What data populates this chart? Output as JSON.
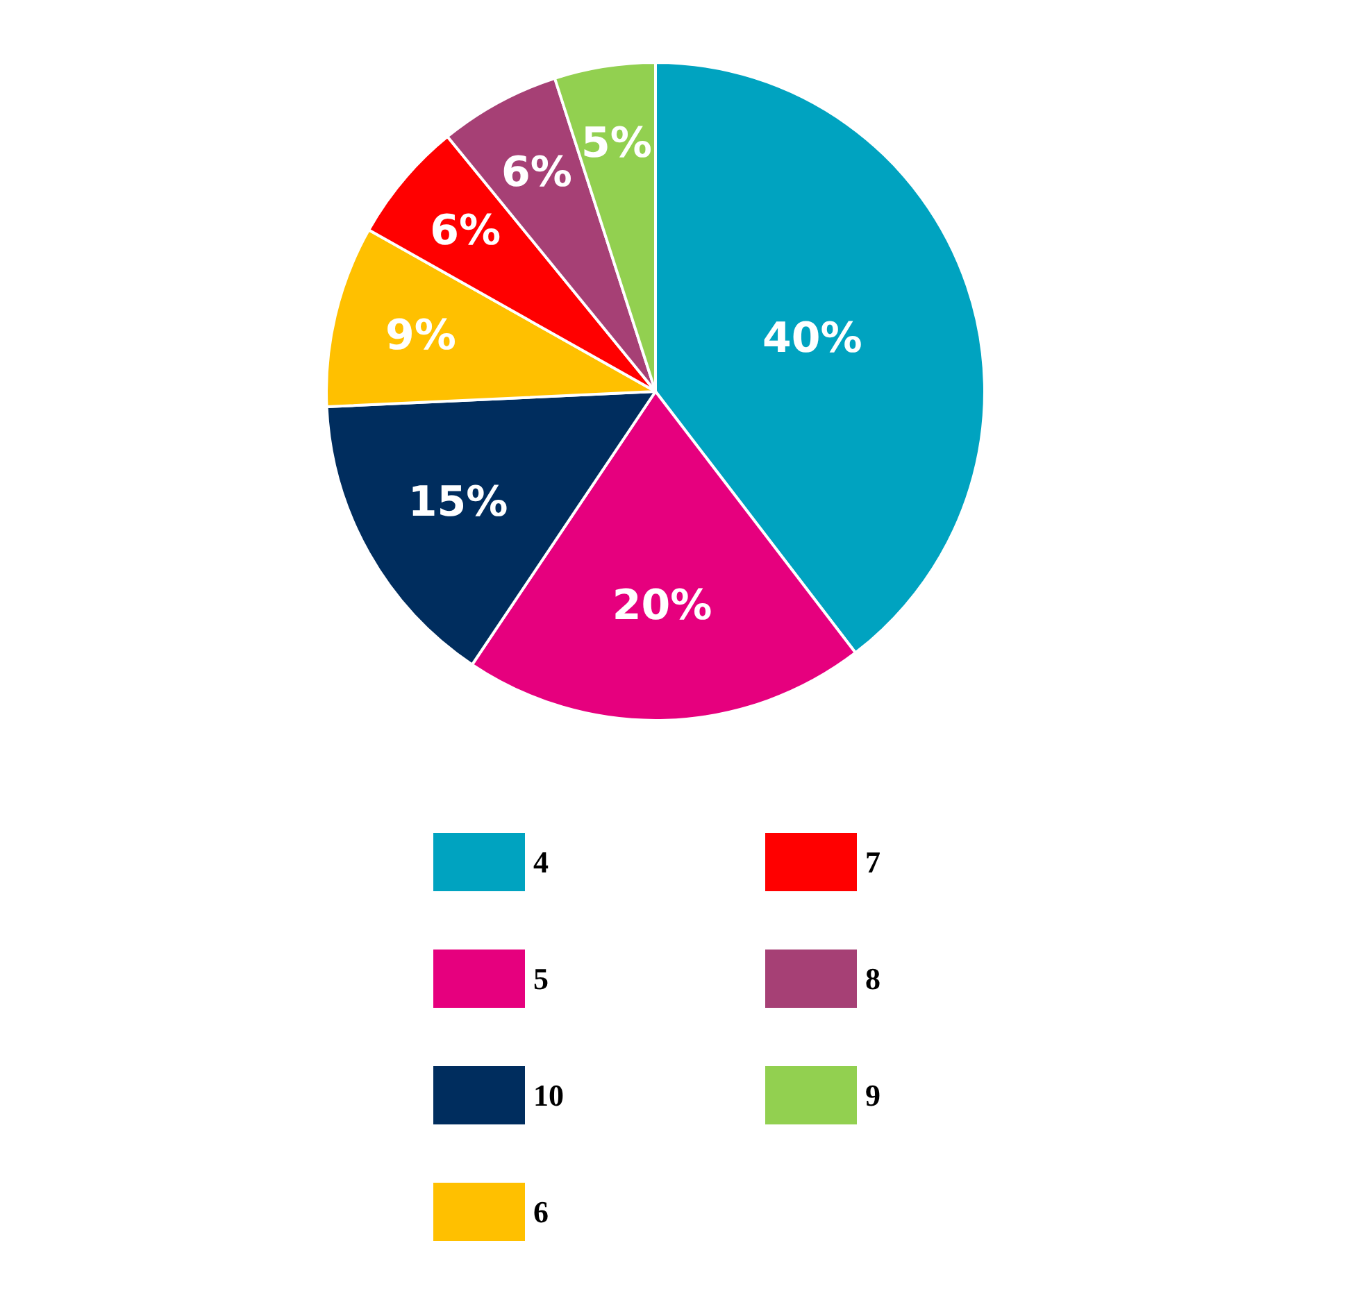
{
  "chart_data": {
    "type": "pie",
    "categories": [
      "4",
      "5",
      "10",
      "6",
      "7",
      "8",
      "9"
    ],
    "values": [
      40,
      20,
      15,
      9,
      6,
      6,
      5
    ],
    "value_labels": [
      "40%",
      "20%",
      "15%",
      "9%",
      "6%",
      "6%",
      "5%"
    ],
    "colors": [
      "#00a3c0",
      "#e6007e",
      "#002d5e",
      "#ffc000",
      "#ff0000",
      "#a64075",
      "#92d050"
    ],
    "legend": "bottom"
  }
}
